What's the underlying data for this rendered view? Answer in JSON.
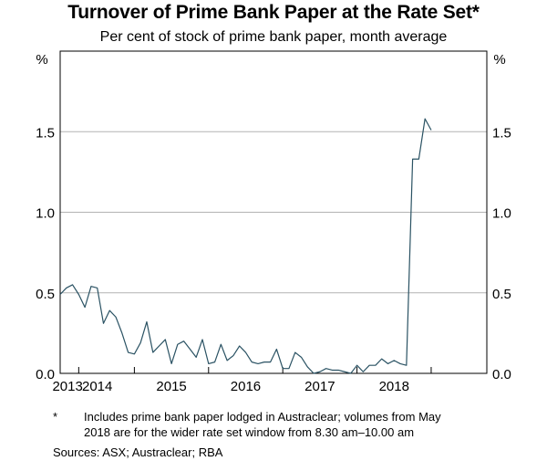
{
  "chart_data": {
    "type": "line",
    "title": "Turnover of Prime Bank Paper at the Rate Set*",
    "subtitle": "Per cent of stock of prime bank paper, month average",
    "ylabel_left": "%",
    "ylabel_right": "%",
    "ylim": [
      0,
      2.0
    ],
    "yticks": [
      0.0,
      0.5,
      1.0,
      1.5
    ],
    "ytick_labels": [
      "0.0",
      "0.5",
      "1.0",
      "1.5"
    ],
    "xlim": [
      2013.0,
      2018.75
    ],
    "xtick_positions": [
      2013.25,
      2014.0,
      2015.0,
      2016.0,
      2017.0,
      2018.0
    ],
    "year_labels": [
      "2013",
      "2014",
      "2015",
      "2016",
      "2017",
      "2018"
    ],
    "year_label_positions": [
      2013.1,
      2013.5,
      2014.5,
      2015.5,
      2016.5,
      2017.5
    ],
    "series": [
      {
        "name": "Turnover",
        "color": "#2a5263",
        "x": [
          2013.0,
          2013.0833,
          2013.1667,
          2013.25,
          2013.3333,
          2013.4167,
          2013.5,
          2013.5833,
          2013.6667,
          2013.75,
          2013.8333,
          2013.9167,
          2014.0,
          2014.0833,
          2014.1667,
          2014.25,
          2014.3333,
          2014.4167,
          2014.5,
          2014.5833,
          2014.6667,
          2014.75,
          2014.8333,
          2014.9167,
          2015.0,
          2015.0833,
          2015.1667,
          2015.25,
          2015.3333,
          2015.4167,
          2015.5,
          2015.5833,
          2015.6667,
          2015.75,
          2015.8333,
          2015.9167,
          2016.0,
          2016.0833,
          2016.1667,
          2016.25,
          2016.3333,
          2016.4167,
          2016.5,
          2016.5833,
          2016.6667,
          2016.75,
          2016.8333,
          2016.9167,
          2017.0,
          2017.0833,
          2017.1667,
          2017.25,
          2017.3333,
          2017.4167,
          2017.5,
          2017.5833,
          2017.6667,
          2017.75,
          2017.8333,
          2017.9167,
          2018.0,
          2018.0833,
          2018.1667
        ],
        "values": [
          0.49,
          0.53,
          0.55,
          0.49,
          0.41,
          0.54,
          0.53,
          0.31,
          0.39,
          0.35,
          0.25,
          0.13,
          0.12,
          0.19,
          0.32,
          0.13,
          0.17,
          0.21,
          0.06,
          0.18,
          0.2,
          0.15,
          0.1,
          0.21,
          0.06,
          0.07,
          0.18,
          0.08,
          0.11,
          0.17,
          0.13,
          0.07,
          0.06,
          0.07,
          0.07,
          0.15,
          0.03,
          0.03,
          0.13,
          0.1,
          0.04,
          0.0,
          0.01,
          0.03,
          0.02,
          0.02,
          0.01,
          0.0,
          0.05,
          0.01,
          0.05,
          0.05,
          0.09,
          0.06,
          0.08,
          0.06,
          0.05,
          1.33,
          1.33,
          1.58,
          1.51,
          null,
          null
        ]
      }
    ]
  },
  "footnote": {
    "marker": "*",
    "line1": "Includes prime bank paper lodged in Austraclear; volumes from May",
    "line2": "2018 are for the wider rate set window from 8.30 am–10.00 am"
  },
  "sources": "Sources:   ASX; Austraclear; RBA",
  "colors": {
    "line": "#2a5263",
    "grid": "#b3b3b3",
    "axis": "#000000"
  }
}
